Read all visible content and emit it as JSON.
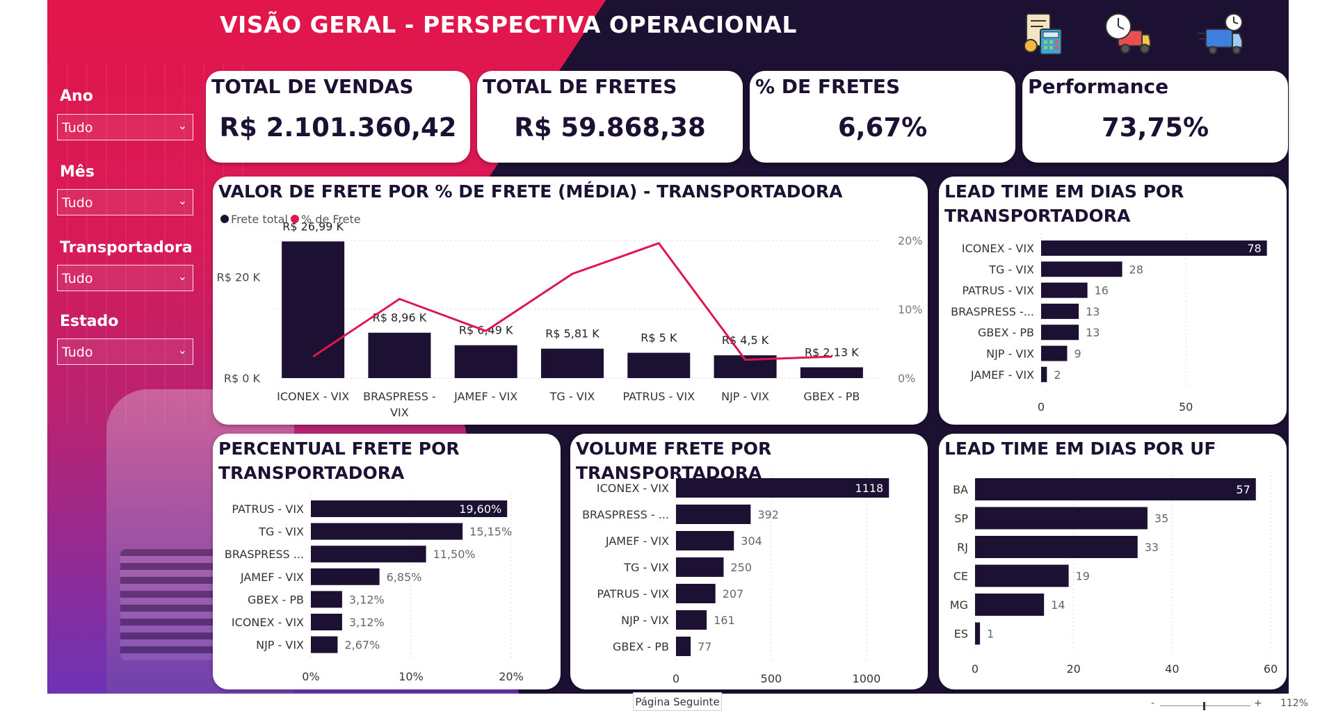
{
  "header": {
    "title": "VISÃO GERAL  - PERSPECTIVA OPERACIONAL",
    "icons": [
      "invoice-calculator-icon",
      "delivery-time-icon",
      "fast-delivery-truck-icon"
    ]
  },
  "filters": [
    {
      "label": "Ano",
      "value": "Tudo"
    },
    {
      "label": "Mês",
      "value": "Tudo"
    },
    {
      "label": "Transportadora",
      "value": "Tudo"
    },
    {
      "label": "Estado",
      "value": "Tudo"
    }
  ],
  "kpis": [
    {
      "title": "TOTAL DE VENDAS",
      "value": "R$ 2.101.360,42"
    },
    {
      "title": "TOTAL DE FRETES",
      "value": "R$ 59.868,38"
    },
    {
      "title": "% DE FRETES",
      "value": "6,67%"
    },
    {
      "title": "Performance",
      "value": "73,75%"
    }
  ],
  "colors": {
    "bar": "#1c1033",
    "line": "#e0174d",
    "accent_red": "#e2164a",
    "dark": "#1c1033"
  },
  "chart_data": [
    {
      "id": "combo",
      "type": "bar",
      "title": "VALOR DE FRETE POR % DE FRETE (MÉDIA) - TRANSPORTADORA",
      "legend": [
        "Frete total",
        "% de Frete"
      ],
      "legend_position": "top-left",
      "categories": [
        "ICONEX - VIX",
        "BRASPRESS - VIX",
        "JAMEF - VIX",
        "TG - VIX",
        "PATRUS - VIX",
        "NJP - VIX",
        "GBEX - PB"
      ],
      "series": [
        {
          "name": "Frete total",
          "type": "bar",
          "values": [
            26990,
            8960,
            6490,
            5810,
            5000,
            4500,
            2130
          ],
          "labels": [
            "R$ 26,99 K",
            "R$ 8,96 K",
            "R$ 6,49 K",
            "R$ 5,81 K",
            "R$ 5 K",
            "R$ 4,5 K",
            "R$ 2,13 K"
          ]
        },
        {
          "name": "% de Frete",
          "type": "line",
          "values": [
            3.12,
            11.5,
            6.85,
            15.15,
            19.6,
            2.67,
            3.12
          ]
        }
      ],
      "y_ticks": [
        "R$ 0 K",
        "R$ 20 K"
      ],
      "y2_ticks": [
        "0%",
        "10%",
        "20%"
      ],
      "ylim": [
        0,
        28000
      ],
      "y2lim": [
        0,
        20
      ]
    },
    {
      "id": "lead_time_carrier",
      "type": "bar",
      "orientation": "horizontal",
      "title": "LEAD TIME EM DIAS POR TRANSPORTADORA",
      "categories": [
        "ICONEX - VIX",
        "TG - VIX",
        "PATRUS - VIX",
        "BRASPRESS -...",
        "GBEX - PB",
        "NJP - VIX",
        "JAMEF - VIX"
      ],
      "values": [
        78,
        28,
        16,
        13,
        13,
        9,
        2
      ],
      "labels": [
        "78",
        "28",
        "16",
        "13",
        "13",
        "9",
        "2"
      ],
      "x_ticks": [
        "0",
        "50"
      ],
      "xlim": [
        0,
        80
      ]
    },
    {
      "id": "pct_freight_carrier",
      "type": "bar",
      "orientation": "horizontal",
      "title": "PERCENTUAL FRETE POR TRANSPORTADORA",
      "categories": [
        "PATRUS - VIX",
        "TG - VIX",
        "BRASPRESS ...",
        "JAMEF - VIX",
        "GBEX - PB",
        "ICONEX - VIX",
        "NJP - VIX"
      ],
      "values": [
        19.6,
        15.15,
        11.5,
        6.85,
        3.12,
        3.12,
        2.67
      ],
      "labels": [
        "19,60%",
        "15,15%",
        "11,50%",
        "6,85%",
        "3,12%",
        "3,12%",
        "2,67%"
      ],
      "x_ticks": [
        "0%",
        "10%",
        "20%"
      ],
      "xlim": [
        0,
        20
      ]
    },
    {
      "id": "volume_carrier",
      "type": "bar",
      "orientation": "horizontal",
      "title": "VOLUME FRETE POR TRANSPORTADORA",
      "categories": [
        "ICONEX - VIX",
        "BRASPRESS - ...",
        "JAMEF - VIX",
        "TG - VIX",
        "PATRUS - VIX",
        "NJP - VIX",
        "GBEX - PB"
      ],
      "values": [
        1118,
        392,
        304,
        250,
        207,
        161,
        77
      ],
      "labels": [
        "1118",
        "392",
        "304",
        "250",
        "207",
        "161",
        "77"
      ],
      "x_ticks": [
        "0",
        "500",
        "1000"
      ],
      "xlim": [
        0,
        1150
      ]
    },
    {
      "id": "lead_time_uf",
      "type": "bar",
      "orientation": "horizontal",
      "title": "LEAD TIME EM DIAS POR UF",
      "categories": [
        "BA",
        "SP",
        "RJ",
        "CE",
        "MG",
        "ES"
      ],
      "values": [
        57,
        35,
        33,
        19,
        14,
        1
      ],
      "labels": [
        "57",
        "35",
        "33",
        "19",
        "14",
        "1"
      ],
      "x_ticks": [
        "0",
        "20",
        "40",
        "60"
      ],
      "xlim": [
        0,
        60
      ]
    }
  ],
  "footer": {
    "next_page": "Página Seguinte",
    "zoom_minus": "-",
    "zoom_plus": "+",
    "zoom_level": "112%"
  }
}
